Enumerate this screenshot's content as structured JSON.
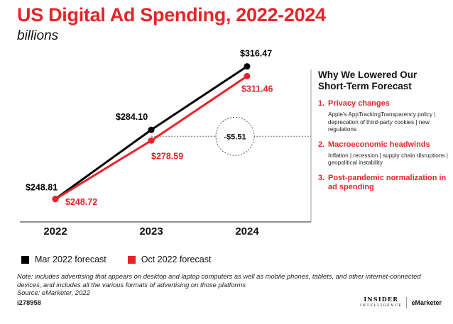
{
  "header": {
    "title": "US Digital Ad Spending, 2022-2024",
    "subtitle": "billions"
  },
  "chart_data": {
    "type": "line",
    "title": "US Digital Ad Spending, 2022-2024",
    "subtitle": "billions",
    "categories": [
      "2022",
      "2023",
      "2024"
    ],
    "series": [
      {
        "name": "Mar 2022 forecast",
        "color": "#000000",
        "values": [
          248.81,
          284.1,
          316.47
        ],
        "labels": [
          "$248.81",
          "$284.10",
          "$316.47"
        ]
      },
      {
        "name": "Oct 2022 forecast",
        "color": "#e5252a",
        "values": [
          248.72,
          278.59,
          311.46
        ],
        "labels": [
          "$248.72",
          "$278.59",
          "$311.46"
        ]
      }
    ],
    "annotation": "-$5.51",
    "ylim": [
      240,
      325
    ],
    "grid": false,
    "legend": "bottom-left"
  },
  "sidebar": {
    "heading_line1": "Why We Lowered Our",
    "heading_line2": "Short-Term Forecast",
    "reasons": [
      {
        "num": "1.",
        "title": "Privacy changes",
        "desc": "Apple's AppTrackingTransparency policy | deprecation of third-party cookies | new regulations"
      },
      {
        "num": "2.",
        "title": "Macroeconomic headwinds",
        "desc": "Inflation | recession | supply chain disruptions | geopolitical instability"
      },
      {
        "num": "3.",
        "title": "Post-pandemic normalization in ad spending",
        "desc": ""
      }
    ]
  },
  "legend": {
    "items": [
      {
        "label": "Mar 2022 forecast",
        "color": "#000000"
      },
      {
        "label": "Oct 2022 forecast",
        "color": "#e5252a"
      }
    ]
  },
  "footer": {
    "note": "Note: includes advertising that appears on desktop and laptop computers as well as mobile phones, tablets, and other internet-connected devices, and includes all the various formats of advertising on those platforms",
    "source": "Source: eMarketer, 2022",
    "id": "i278958",
    "brand_insider": "INSIDER",
    "brand_insider_sub": "INTELLIGENCE",
    "brand_emarketer": "eMarketer"
  },
  "colors": {
    "accent": "#e5252a",
    "text": "#111111",
    "background": "#ffffff"
  }
}
